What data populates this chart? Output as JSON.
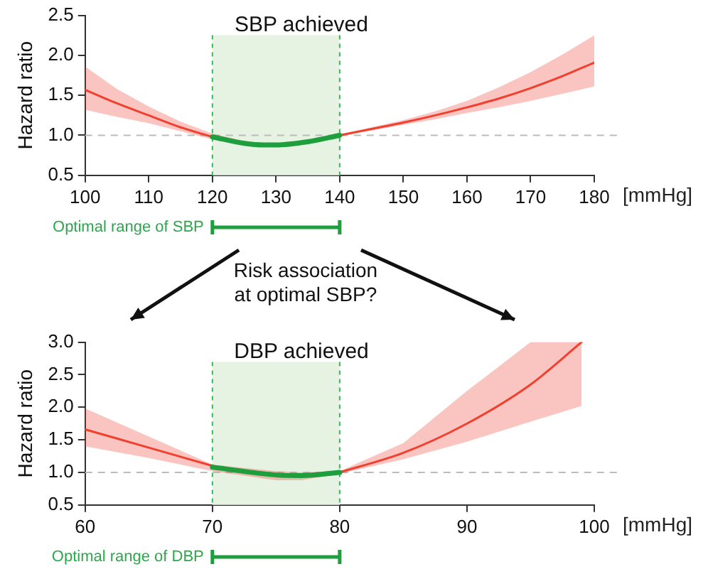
{
  "chart_data": [
    {
      "type": "line",
      "title": "SBP achieved",
      "ylabel": "Hazard ratio",
      "xlim": [
        100,
        180
      ],
      "xticks": [
        100,
        110,
        120,
        130,
        140,
        150,
        160,
        170,
        180
      ],
      "ylim": [
        0.5,
        2.5
      ],
      "yticks": [
        0.5,
        {
          "value": 1,
          "label": "1.0"
        },
        1.5,
        {
          "value": 2,
          "label": "2.0"
        },
        2.5
      ],
      "marker": "none",
      "legend": false,
      "series": [
        {
          "color": "#f0402f",
          "x": [
            100,
            105,
            110,
            115,
            120,
            125,
            128,
            130,
            135,
            140,
            145,
            150,
            155,
            160,
            165,
            170,
            175,
            180
          ],
          "values": [
            1.57,
            1.4,
            1.25,
            1.1,
            0.98,
            null,
            null,
            null,
            null,
            1.0,
            1.08,
            1.16,
            1.25,
            1.35,
            1.46,
            1.59,
            1.74,
            1.91
          ],
          "lower": [
            1.32,
            1.23,
            1.15,
            1.05,
            0.95,
            0.88,
            0.86,
            0.86,
            0.9,
            0.99,
            1.06,
            1.13,
            1.2,
            1.28,
            1.35,
            1.43,
            1.52,
            1.61
          ],
          "upper": [
            1.86,
            1.58,
            1.36,
            1.17,
            1.02,
            0.93,
            0.9,
            0.9,
            0.94,
            1.01,
            1.1,
            1.19,
            1.3,
            1.43,
            1.6,
            1.79,
            2.01,
            2.25
          ]
        },
        {
          "color": "#1f9e3e",
          "x": [
            120,
            125,
            128,
            130,
            135,
            140
          ],
          "values": [
            0.98,
            0.9,
            0.88,
            0.88,
            0.92,
            1.0
          ]
        }
      ],
      "ref_lines": [
        {
          "axis": "y",
          "value": 1.0,
          "color": "#bbbbbb",
          "line_style": "dashed"
        }
      ],
      "bands": [
        {
          "axis": "x",
          "from": 120,
          "to": 140,
          "label": "Optimal range of SBP",
          "color": "#e6f3e3"
        }
      ],
      "annotations": [
        "[mmHg]",
        "Risk association\nat optimal SBP?"
      ]
    },
    {
      "type": "line",
      "title": "DBP achieved",
      "ylabel": "Hazard ratio",
      "xlim": [
        60,
        100
      ],
      "xticks": [
        60,
        70,
        80,
        90,
        100
      ],
      "ylim": [
        0.5,
        3.0
      ],
      "yticks": [
        0.5,
        {
          "value": 1,
          "label": "1.0"
        },
        1.5,
        {
          "value": 2,
          "label": "2.0"
        },
        2.5,
        {
          "value": 3,
          "label": "3.0"
        }
      ],
      "marker": "none",
      "legend": false,
      "series": [
        {
          "color": "#f0402f",
          "x": [
            60,
            65,
            70,
            75,
            77,
            80,
            85,
            90,
            95,
            99
          ],
          "values": [
            1.66,
            1.38,
            1.1,
            null,
            null,
            1.0,
            1.3,
            1.75,
            2.35,
            3.0
          ],
          "lower": [
            1.4,
            1.22,
            1.02,
            0.88,
            0.88,
            0.98,
            1.2,
            1.47,
            1.78,
            2.02
          ],
          "upper": [
            1.98,
            1.55,
            1.12,
            1.02,
            1.0,
            1.02,
            1.45,
            2.25,
            3.0,
            3.0
          ]
        },
        {
          "color": "#1f9e3e",
          "x": [
            70,
            75,
            77,
            80
          ],
          "values": [
            1.08,
            0.96,
            0.95,
            1.0
          ]
        }
      ],
      "ref_lines": [
        {
          "axis": "y",
          "value": 1.0,
          "color": "#bbbbbb",
          "line_style": "dashed"
        }
      ],
      "bands": [
        {
          "axis": "x",
          "from": 70,
          "to": 80,
          "label": "Optimal range of DBP",
          "color": "#e6f3e3"
        }
      ],
      "annotations": [
        "[mmHg]"
      ]
    }
  ]
}
